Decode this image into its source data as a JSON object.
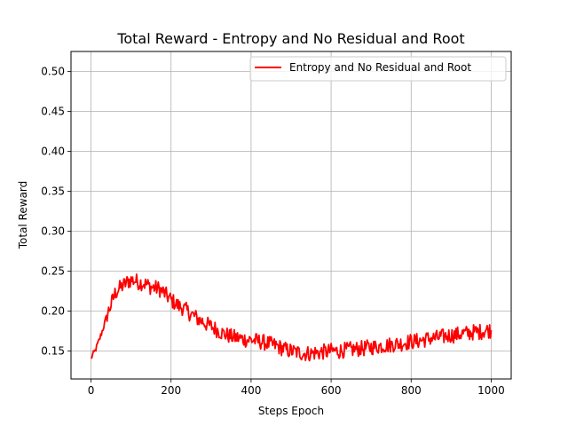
{
  "chart_data": {
    "type": "line",
    "title": "Total Reward - Entropy and No Residual and Root",
    "xlabel": "Steps Epoch",
    "ylabel": "Total Reward",
    "xlim": [
      -50,
      1050
    ],
    "ylim": [
      0.115,
      0.525
    ],
    "xticks": [
      0,
      200,
      400,
      600,
      800,
      1000
    ],
    "yticks": [
      0.15,
      0.2,
      0.25,
      0.3,
      0.35,
      0.4,
      0.45,
      0.5
    ],
    "xtick_labels": [
      "0",
      "200",
      "400",
      "600",
      "800",
      "1000"
    ],
    "ytick_labels": [
      "0.15",
      "0.20",
      "0.25",
      "0.30",
      "0.35",
      "0.40",
      "0.45",
      "0.50"
    ],
    "grid": true,
    "legend_position": "top-right",
    "series": [
      {
        "name": "Entropy and No Residual and Root",
        "color": "#ff0000",
        "x": [
          0,
          10,
          20,
          30,
          40,
          50,
          60,
          70,
          80,
          90,
          100,
          110,
          120,
          130,
          140,
          150,
          160,
          170,
          180,
          190,
          200,
          210,
          220,
          230,
          240,
          250,
          260,
          270,
          280,
          290,
          300,
          310,
          320,
          330,
          340,
          350,
          360,
          370,
          380,
          390,
          400,
          410,
          420,
          430,
          440,
          450,
          460,
          470,
          480,
          490,
          500,
          510,
          520,
          530,
          540,
          550,
          560,
          570,
          580,
          590,
          600,
          610,
          620,
          630,
          640,
          650,
          660,
          670,
          680,
          690,
          700,
          710,
          720,
          730,
          740,
          750,
          760,
          770,
          780,
          790,
          800,
          810,
          820,
          830,
          840,
          850,
          860,
          870,
          880,
          890,
          900,
          910,
          920,
          930,
          940,
          950,
          960,
          970,
          980,
          990,
          1000
        ],
        "y": [
          0.141,
          0.15,
          0.163,
          0.178,
          0.195,
          0.208,
          0.222,
          0.228,
          0.232,
          0.236,
          0.239,
          0.238,
          0.236,
          0.235,
          0.233,
          0.23,
          0.229,
          0.228,
          0.224,
          0.219,
          0.214,
          0.21,
          0.206,
          0.204,
          0.2,
          0.196,
          0.193,
          0.189,
          0.187,
          0.183,
          0.181,
          0.178,
          0.175,
          0.172,
          0.17,
          0.168,
          0.167,
          0.166,
          0.165,
          0.164,
          0.164,
          0.163,
          0.162,
          0.161,
          0.16,
          0.158,
          0.157,
          0.155,
          0.153,
          0.151,
          0.15,
          0.149,
          0.148,
          0.147,
          0.147,
          0.147,
          0.148,
          0.148,
          0.149,
          0.149,
          0.15,
          0.15,
          0.15,
          0.151,
          0.151,
          0.152,
          0.152,
          0.153,
          0.153,
          0.154,
          0.155,
          0.155,
          0.156,
          0.157,
          0.157,
          0.158,
          0.159,
          0.159,
          0.16,
          0.161,
          0.162,
          0.162,
          0.163,
          0.164,
          0.165,
          0.166,
          0.166,
          0.167,
          0.168,
          0.169,
          0.17,
          0.17,
          0.171,
          0.172,
          0.172,
          0.173,
          0.174,
          0.174,
          0.175,
          0.176,
          0.176
        ]
      }
    ]
  }
}
